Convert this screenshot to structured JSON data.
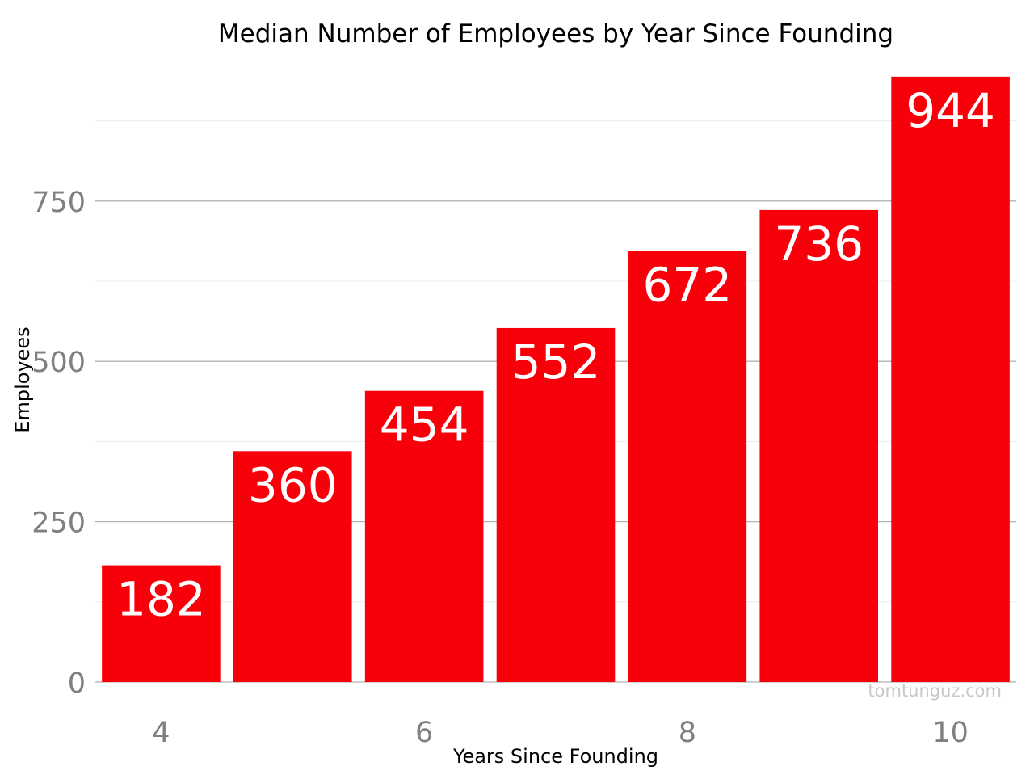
{
  "chart_data": {
    "type": "bar",
    "title": "Median Number of Employees by Year Since Founding",
    "xlabel": "Years Since Founding",
    "ylabel": "Employees",
    "categories": [
      4,
      5,
      6,
      7,
      8,
      9,
      10
    ],
    "values": [
      182,
      360,
      454,
      552,
      672,
      736,
      944
    ],
    "data_labels": [
      "182",
      "360",
      "454",
      "552",
      "672",
      "736",
      "944"
    ],
    "xlim": [
      3.5,
      10.5
    ],
    "ylim": [
      0,
      950
    ],
    "x_ticks": [
      4,
      6,
      8,
      10
    ],
    "x_tick_labels": [
      "4",
      "6",
      "8",
      "10"
    ],
    "y_ticks": [
      0,
      250,
      500,
      750
    ],
    "y_tick_labels": [
      "0",
      "250",
      "500",
      "750"
    ],
    "y_minor_ticks": [
      125,
      375,
      625,
      875
    ],
    "grid": true,
    "legend": "none",
    "watermark": "tomtunguz.com",
    "colors": {
      "bar": "#f8000a",
      "bar_label": "#ffffff",
      "major_grid": "#b3b3b3",
      "minor_grid": "#ececec",
      "tick_label": "#808080",
      "title": "#000000",
      "axis_title": "#000000",
      "watermark": "#c8c8c8",
      "background": "#ffffff"
    }
  }
}
